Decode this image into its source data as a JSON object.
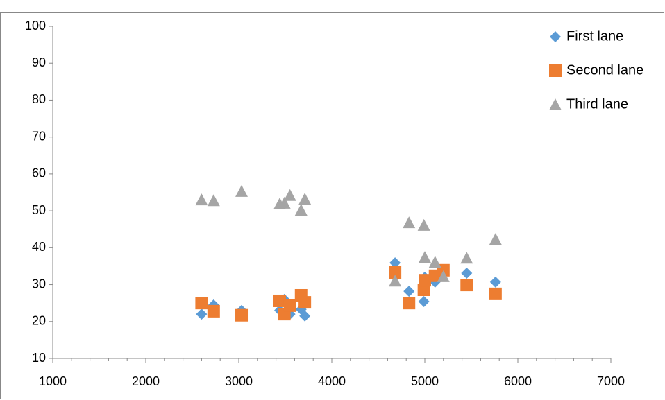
{
  "chart_data": {
    "type": "scatter",
    "x": [
      2600,
      2730,
      3030,
      3440,
      3490,
      3550,
      3670,
      3710,
      4680,
      4830,
      4990,
      5000,
      5110,
      5200,
      5450,
      5760
    ],
    "series": [
      {
        "name": "First lane",
        "color": "#5b9bd5",
        "marker": "diamond",
        "values": [
          22.0,
          24.5,
          23.0,
          23.0,
          26.0,
          22.0,
          23.3,
          21.5,
          35.9,
          28.2,
          25.4,
          32.0,
          30.7,
          null,
          33.1,
          30.7
        ]
      },
      {
        "name": "Second lane",
        "color": "#ed7d31",
        "marker": "square",
        "values": [
          25.0,
          22.8,
          21.7,
          25.6,
          22.0,
          24.3,
          27.1,
          25.2,
          33.3,
          25.0,
          28.6,
          31.2,
          32.4,
          33.9,
          29.9,
          27.5
        ]
      },
      {
        "name": "Third lane",
        "color": "#a5a5a5",
        "marker": "triangle",
        "values": [
          53.0,
          52.8,
          55.3,
          51.9,
          52.1,
          54.2,
          50.2,
          53.2,
          31.0,
          46.8,
          46.1,
          37.4,
          36.1,
          32.2,
          37.2,
          42.3
        ]
      }
    ],
    "xlim": [
      1000,
      7000
    ],
    "xticks": [
      1000,
      2000,
      3000,
      4000,
      5000,
      6000,
      7000
    ],
    "xminorticks": [
      1200,
      1400,
      1600,
      1800,
      2200,
      2400,
      2600,
      2800,
      3200,
      3400,
      3600,
      3800,
      4200,
      4400,
      4600,
      4800,
      5200,
      5400,
      5600,
      5800,
      6200,
      6400,
      6600,
      6800
    ],
    "ylim": [
      10,
      100
    ],
    "yticks": [
      10,
      20,
      30,
      40,
      50,
      60,
      70,
      80,
      90,
      100
    ],
    "grid": false,
    "legend": "top-right"
  }
}
